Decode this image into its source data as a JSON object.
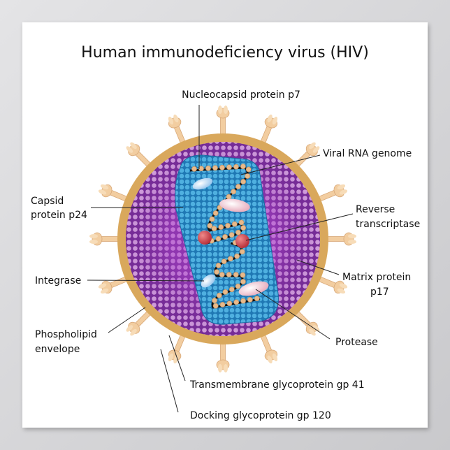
{
  "title": "Human immunodeficiency virus (HIV)",
  "labels": {
    "nucleocapsid": "Nucleocapsid protein p7",
    "rna": "Viral RNA genome",
    "capsid_1": "Capsid",
    "capsid_2": "protein p24",
    "rt_1": "Reverse",
    "rt_2": "transcriptase",
    "matrix_1": "Matrix protein",
    "matrix_2": "p17",
    "integrase": "Integrase",
    "envelope_1": "Phospholipid",
    "envelope_2": "envelope",
    "protease": "Protease",
    "gp41": "Transmembrane glycoprotein gp 41",
    "gp120": "Docking glycoprotein gp 120"
  },
  "colors": {
    "envelope": "#d9a85c",
    "matrix": "#7a2f9a",
    "capsid": "#2f8fc8",
    "rna": "#111111",
    "beads": "#e8b98a",
    "reverse_transcriptase": "#c8434f",
    "spikes": "#f2cda0"
  }
}
